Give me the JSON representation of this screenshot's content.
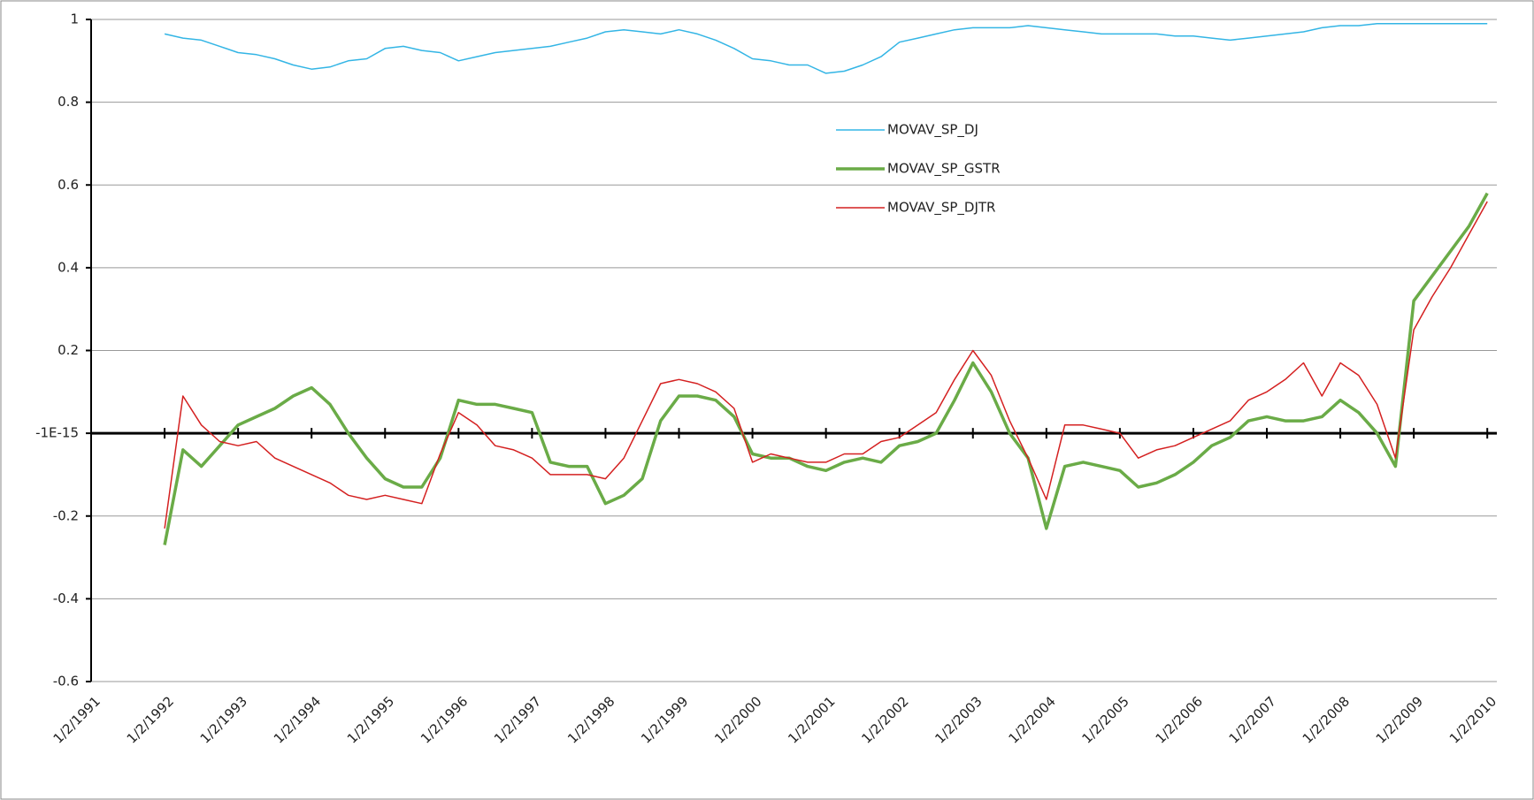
{
  "chart_data": {
    "type": "line",
    "x": [
      1992,
      1992.25,
      1992.5,
      1992.75,
      1993,
      1993.25,
      1993.5,
      1993.75,
      1994,
      1994.25,
      1994.5,
      1994.75,
      1995,
      1995.25,
      1995.5,
      1995.75,
      1996,
      1996.25,
      1996.5,
      1996.75,
      1997,
      1997.25,
      1997.5,
      1997.75,
      1998,
      1998.25,
      1998.5,
      1998.75,
      1999,
      1999.25,
      1999.5,
      1999.75,
      2000,
      2000.25,
      2000.5,
      2000.75,
      2001,
      2001.25,
      2001.5,
      2001.75,
      2002,
      2002.25,
      2002.5,
      2002.75,
      2003,
      2003.25,
      2003.5,
      2003.75,
      2004,
      2004.25,
      2004.5,
      2004.75,
      2005,
      2005.25,
      2005.5,
      2005.75,
      2006,
      2006.25,
      2006.5,
      2006.75,
      2007,
      2007.25,
      2007.5,
      2007.75,
      2008,
      2008.25,
      2008.5,
      2008.75,
      2009,
      2009.25,
      2009.5,
      2009.75,
      2010
    ],
    "series": [
      {
        "name": "MOVAV_SP_DJ",
        "color": "#33b5e5",
        "width": 1.5,
        "values": [
          0.965,
          0.955,
          0.95,
          0.935,
          0.92,
          0.915,
          0.905,
          0.89,
          0.88,
          0.885,
          0.9,
          0.905,
          0.93,
          0.935,
          0.925,
          0.92,
          0.9,
          0.91,
          0.92,
          0.925,
          0.93,
          0.935,
          0.945,
          0.955,
          0.97,
          0.975,
          0.97,
          0.965,
          0.975,
          0.965,
          0.95,
          0.93,
          0.905,
          0.9,
          0.89,
          0.89,
          0.87,
          0.875,
          0.89,
          0.91,
          0.945,
          0.955,
          0.965,
          0.975,
          0.98,
          0.98,
          0.98,
          0.985,
          0.98,
          0.975,
          0.97,
          0.965,
          0.965,
          0.965,
          0.965,
          0.96,
          0.96,
          0.955,
          0.95,
          0.955,
          0.96,
          0.965,
          0.97,
          0.98,
          0.985,
          0.985,
          0.99,
          0.99,
          0.99,
          0.99,
          0.99,
          0.99,
          0.99
        ]
      },
      {
        "name": "MOVAV_SP_GSTR",
        "color": "#6aab47",
        "width": 3.5,
        "values": [
          -0.27,
          -0.04,
          -0.08,
          -0.03,
          0.02,
          0.04,
          0.06,
          0.09,
          0.11,
          0.07,
          0.0,
          -0.06,
          -0.11,
          -0.13,
          -0.13,
          -0.06,
          0.08,
          0.07,
          0.07,
          0.06,
          0.05,
          -0.07,
          -0.08,
          -0.08,
          -0.17,
          -0.15,
          -0.11,
          0.03,
          0.09,
          0.09,
          0.08,
          0.04,
          -0.05,
          -0.06,
          -0.06,
          -0.08,
          -0.09,
          -0.07,
          -0.06,
          -0.07,
          -0.03,
          -0.02,
          0.0,
          0.08,
          0.17,
          0.1,
          0.0,
          -0.06,
          -0.23,
          -0.08,
          -0.07,
          -0.08,
          -0.09,
          -0.13,
          -0.12,
          -0.1,
          -0.07,
          -0.03,
          -0.01,
          0.03,
          0.04,
          0.03,
          0.03,
          0.04,
          0.08,
          0.05,
          0.0,
          -0.08,
          0.32,
          0.38,
          0.44,
          0.5,
          0.58
        ]
      },
      {
        "name": "MOVAV_SP_DJTR",
        "color": "#d42020",
        "width": 1.5,
        "values": [
          -0.23,
          0.09,
          0.02,
          -0.02,
          -0.03,
          -0.02,
          -0.06,
          -0.08,
          -0.1,
          -0.12,
          -0.15,
          -0.16,
          -0.15,
          -0.16,
          -0.17,
          -0.05,
          0.05,
          0.02,
          -0.03,
          -0.04,
          -0.06,
          -0.1,
          -0.1,
          -0.1,
          -0.11,
          -0.06,
          0.03,
          0.12,
          0.13,
          0.12,
          0.1,
          0.06,
          -0.07,
          -0.05,
          -0.06,
          -0.07,
          -0.07,
          -0.05,
          -0.05,
          -0.02,
          -0.01,
          0.02,
          0.05,
          0.13,
          0.2,
          0.14,
          0.03,
          -0.06,
          -0.16,
          0.02,
          0.02,
          0.01,
          0.0,
          -0.06,
          -0.04,
          -0.03,
          -0.01,
          0.01,
          0.03,
          0.08,
          0.1,
          0.13,
          0.17,
          0.09,
          0.17,
          0.14,
          0.07,
          -0.06,
          0.25,
          0.33,
          0.4,
          0.48,
          0.56
        ]
      }
    ],
    "xlim": [
      1991,
      2010.13
    ],
    "xticks": [
      {
        "value": 1991,
        "label": "1/2/1991"
      },
      {
        "value": 1992,
        "label": "1/2/1992"
      },
      {
        "value": 1993,
        "label": "1/2/1993"
      },
      {
        "value": 1994,
        "label": "1/2/1994"
      },
      {
        "value": 1995,
        "label": "1/2/1995"
      },
      {
        "value": 1996,
        "label": "1/2/1996"
      },
      {
        "value": 1997,
        "label": "1/2/1997"
      },
      {
        "value": 1998,
        "label": "1/2/1998"
      },
      {
        "value": 1999,
        "label": "1/2/1999"
      },
      {
        "value": 2000,
        "label": "1/2/2000"
      },
      {
        "value": 2001,
        "label": "1/2/2001"
      },
      {
        "value": 2002,
        "label": "1/2/2002"
      },
      {
        "value": 2003,
        "label": "1/2/2003"
      },
      {
        "value": 2004,
        "label": "1/2/2004"
      },
      {
        "value": 2005,
        "label": "1/2/2005"
      },
      {
        "value": 2006,
        "label": "1/2/2006"
      },
      {
        "value": 2007,
        "label": "1/2/2007"
      },
      {
        "value": 2008,
        "label": "1/2/2008"
      },
      {
        "value": 2009,
        "label": "1/2/2009"
      },
      {
        "value": 2010,
        "label": "1/2/2010"
      }
    ],
    "ylim": [
      -0.6,
      1
    ],
    "yticks": [
      -0.6,
      -0.4,
      -0.2,
      {
        "value": -1e-15,
        "label": "-1E-15"
      },
      0.2,
      0.4,
      0.6,
      0.8,
      1
    ],
    "grid": true,
    "legend": "upper-center"
  }
}
